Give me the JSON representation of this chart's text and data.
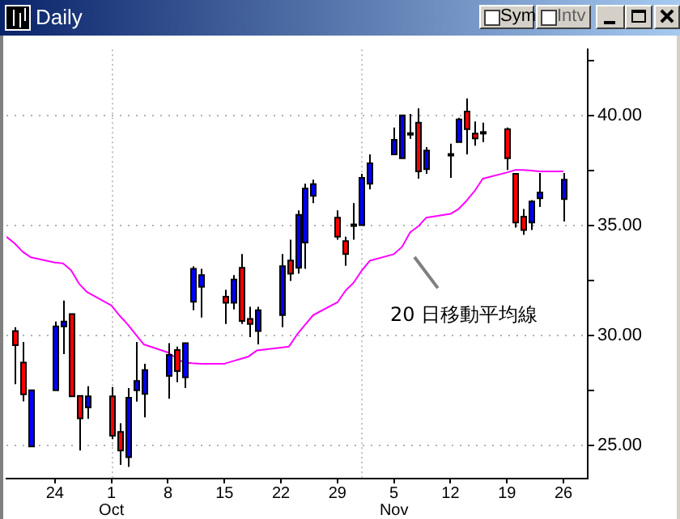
{
  "chart_data": {
    "type": "candlestick",
    "title": "Daily",
    "x": [
      "--09-19",
      "--09-20",
      "--09-21",
      "--09-24",
      "--09-25",
      "--09-26",
      "--09-27",
      "--09-28",
      "--10-01",
      "--10-02",
      "--10-03",
      "--10-04",
      "--10-05",
      "--10-08",
      "--10-09",
      "--10-10",
      "--10-11",
      "--10-12",
      "--10-15",
      "--10-16",
      "--10-17",
      "--10-18",
      "--10-19",
      "--10-22",
      "--10-23",
      "--10-24",
      "--10-25",
      "--10-26",
      "--10-29",
      "--10-30",
      "--10-31",
      "--11-01",
      "--11-02",
      "--11-05",
      "--11-06",
      "--11-07",
      "--11-08",
      "--11-09",
      "--11-12",
      "--11-13",
      "--11-14",
      "--11-15",
      "--11-16",
      "--11-19",
      "--11-20",
      "--11-21",
      "--11-22",
      "--11-23",
      "--11-26"
    ],
    "ohlc": [
      [
        30.2,
        30.38,
        27.79,
        29.56
      ],
      [
        28.77,
        29.71,
        27.01,
        27.33
      ],
      [
        24.96,
        27.51,
        24.96,
        27.51
      ],
      [
        27.51,
        30.64,
        27.51,
        30.42
      ],
      [
        30.42,
        31.59,
        29.16,
        30.64
      ],
      [
        30.98,
        30.98,
        27.24,
        27.24
      ],
      [
        27.26,
        27.26,
        24.78,
        26.24
      ],
      [
        26.73,
        27.7,
        26.22,
        27.24
      ],
      [
        27.24,
        27.66,
        25.29,
        25.45
      ],
      [
        25.62,
        26.02,
        24.12,
        24.78
      ],
      [
        24.47,
        27.61,
        24.03,
        27.17
      ],
      [
        27.51,
        29.71,
        27.0,
        27.94
      ],
      [
        27.35,
        28.72,
        26.28,
        28.43
      ],
      [
        28.17,
        29.65,
        27.13,
        29.12
      ],
      [
        29.34,
        29.5,
        27.88,
        28.39
      ],
      [
        28.1,
        29.65,
        27.61,
        29.65
      ],
      [
        31.54,
        33.14,
        31.15,
        33.03
      ],
      [
        32.22,
        33.03,
        30.82,
        32.75
      ],
      [
        31.77,
        32.08,
        30.53,
        31.49
      ],
      [
        31.49,
        32.75,
        31.19,
        32.55
      ],
      [
        33.08,
        33.7,
        30.53,
        30.66
      ],
      [
        30.76,
        31.31,
        29.93,
        30.53
      ],
      [
        30.2,
        31.31,
        29.6,
        31.15
      ],
      [
        30.93,
        33.7,
        30.38,
        33.15
      ],
      [
        33.41,
        34.36,
        32.48,
        32.81
      ],
      [
        33.08,
        35.69,
        32.81,
        35.49
      ],
      [
        34.23,
        36.9,
        33.03,
        36.68
      ],
      [
        36.35,
        37.08,
        36.02,
        36.88
      ],
      [
        35.36,
        35.69,
        34.36,
        34.49
      ],
      [
        34.29,
        34.49,
        33.17,
        33.7
      ],
      [
        35.0,
        36.02,
        34.36,
        35.05
      ],
      [
        35.02,
        37.35,
        35.02,
        37.17
      ],
      [
        36.9,
        38.23,
        36.64,
        37.83
      ],
      [
        38.23,
        39.45,
        38.23,
        38.89
      ],
      [
        38.06,
        40.0,
        38.06,
        40.0
      ],
      [
        39.13,
        40.07,
        38.94,
        39.2
      ],
      [
        39.67,
        40.33,
        37.13,
        37.46
      ],
      [
        37.56,
        38.56,
        37.35,
        38.41
      ],
      [
        38.2,
        38.72,
        37.17,
        38.25
      ],
      [
        38.79,
        39.89,
        38.79,
        39.82
      ],
      [
        40.18,
        40.78,
        38.23,
        39.38
      ],
      [
        39.18,
        39.73,
        38.63,
        38.96
      ],
      [
        39.2,
        39.67,
        38.79,
        39.25
      ],
      [
        39.38,
        39.45,
        37.52,
        38.06
      ],
      [
        37.35,
        37.35,
        34.91,
        35.14
      ],
      [
        35.4,
        35.75,
        34.58,
        34.8
      ],
      [
        35.14,
        36.16,
        34.8,
        36.09
      ],
      [
        36.24,
        37.39,
        35.84,
        36.5
      ],
      [
        36.2,
        37.39,
        35.18,
        37.08
      ]
    ],
    "colors": [
      "#ff0000",
      "#ff0000",
      "#0000ff",
      "#0000ff",
      "#0000ff",
      "#ff0000",
      "#ff0000",
      "#0000ff",
      "#ff0000",
      "#ff0000",
      "#0000ff",
      "#0000ff",
      "#0000ff",
      "#0000ff",
      "#ff0000",
      "#0000ff",
      "#0000ff",
      "#0000ff",
      "#ff0000",
      "#0000ff",
      "#ff0000",
      "#ff0000",
      "#0000ff",
      "#0000ff",
      "#ff0000",
      "#0000ff",
      "#0000ff",
      "#0000ff",
      "#ff0000",
      "#ff0000",
      "#0000ff",
      "#0000ff",
      "#0000ff",
      "#0000ff",
      "#0000ff",
      "#0000ff",
      "#ff0000",
      "#0000ff",
      "#0000ff",
      "#0000ff",
      "#ff0000",
      "#ff0000",
      "#0000ff",
      "#ff0000",
      "#ff0000",
      "#ff0000",
      "#0000ff",
      "#0000ff",
      "#0000ff"
    ],
    "series": [
      {
        "type": "line",
        "name": "20 日移動平均線",
        "color": "#ff00ff",
        "marker": "none",
        "x": [
          "--09-18",
          "--09-19",
          "--09-20",
          "--09-21",
          "--09-24",
          "--09-25",
          "--09-26",
          "--09-27",
          "--09-28",
          "--10-01",
          "--10-02",
          "--10-03",
          "--10-04",
          "--10-05",
          "--10-08",
          "--10-09",
          "--10-10",
          "--10-11",
          "--10-12",
          "--10-15",
          "--10-16",
          "--10-17",
          "--10-18",
          "--10-19",
          "--10-22",
          "--10-23",
          "--10-24",
          "--10-25",
          "--10-26",
          "--10-29",
          "--10-30",
          "--10-31",
          "--11-01",
          "--11-02",
          "--11-05",
          "--11-06",
          "--11-07",
          "--11-08",
          "--11-09",
          "--11-12",
          "--11-13",
          "--11-14",
          "--11-15",
          "--11-16",
          "--11-19",
          "--11-20",
          "--11-21",
          "--11-22",
          "--11-23",
          "--11-26"
        ],
        "values": [
          34.49,
          34.19,
          33.81,
          33.56,
          33.32,
          33.28,
          32.97,
          32.35,
          31.97,
          31.37,
          30.91,
          30.51,
          30.05,
          29.6,
          29.23,
          28.98,
          28.77,
          28.74,
          28.72,
          28.72,
          28.83,
          28.94,
          29.05,
          29.32,
          29.45,
          29.5,
          30.05,
          30.49,
          30.93,
          31.51,
          32.04,
          32.4,
          32.95,
          33.4,
          33.7,
          34.03,
          34.69,
          34.96,
          35.36,
          35.53,
          35.75,
          36.13,
          36.57,
          37.13,
          37.41,
          37.52,
          37.52,
          37.5,
          37.46,
          37.46
        ]
      }
    ],
    "xlim": [
      "--09-18",
      "--11-29"
    ],
    "xticks": [
      {
        "value": "--09-24",
        "label": "24"
      },
      {
        "value": "--10-01",
        "label": "1\nOct"
      },
      {
        "value": "--10-08",
        "label": "8"
      },
      {
        "value": "--10-15",
        "label": "15"
      },
      {
        "value": "--10-22",
        "label": "22"
      },
      {
        "value": "--10-29",
        "label": "29"
      },
      {
        "value": "--11-05",
        "label": "5\nNov"
      },
      {
        "value": "--11-12",
        "label": "12"
      },
      {
        "value": "--11-19",
        "label": "19"
      },
      {
        "value": "--11-26",
        "label": "26"
      }
    ],
    "ylim": [
      23.5,
      43.0
    ],
    "yticks": [
      {
        "value": 25,
        "label": "25.00"
      },
      {
        "value": 27.5,
        "label": null
      },
      {
        "value": 30,
        "label": "30.00"
      },
      {
        "value": 32.5,
        "label": null
      },
      {
        "value": 35,
        "label": "35.00"
      },
      {
        "value": 37.5,
        "label": null
      },
      {
        "value": 40,
        "label": "40.00"
      },
      {
        "value": 42.5,
        "label": null
      }
    ],
    "grid": "y",
    "ref_lines": [
      {
        "axis": "x",
        "value": "--10-01",
        "color": "#c0c0c0",
        "line_style": "dotted"
      },
      {
        "axis": "x",
        "value": "--11-01",
        "color": "#c0c0c0",
        "line_style": "dotted"
      }
    ],
    "annotations": [
      "Sym",
      "Intv"
    ],
    "legend": false
  }
}
